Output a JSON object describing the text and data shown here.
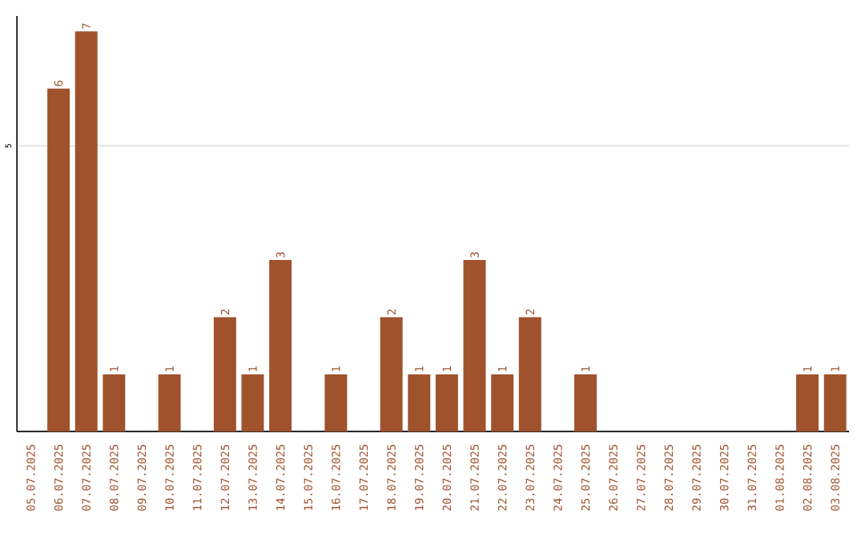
{
  "chart_data": {
    "type": "bar",
    "color": "#a0522d",
    "categories": [
      "05.07.2025",
      "06.07.2025",
      "07.07.2025",
      "08.07.2025",
      "09.07.2025",
      "10.07.2025",
      "11.07.2025",
      "12.07.2025",
      "13.07.2025",
      "14.07.2025",
      "15.07.2025",
      "16.07.2025",
      "17.07.2025",
      "18.07.2025",
      "19.07.2025",
      "20.07.2025",
      "21.07.2025",
      "22.07.2025",
      "23.07.2025",
      "24.07.2025",
      "25.07.2025",
      "26.07.2025",
      "27.07.2025",
      "28.07.2025",
      "29.07.2025",
      "30.07.2025",
      "31.07.2025",
      "01.08.2025",
      "02.08.2025",
      "03.08.2025"
    ],
    "values": [
      0,
      6,
      7,
      1,
      0,
      1,
      0,
      2,
      1,
      3,
      0,
      1,
      0,
      2,
      1,
      1,
      3,
      1,
      2,
      0,
      1,
      0,
      0,
      0,
      0,
      0,
      0,
      0,
      1,
      1
    ],
    "value_labels": [
      null,
      "6",
      "7",
      "1",
      null,
      "1",
      null,
      "2",
      "1",
      "3",
      null,
      "1",
      null,
      "2",
      "1",
      "1",
      "3",
      "1",
      "2",
      null,
      "1",
      null,
      null,
      null,
      null,
      null,
      null,
      null,
      "1",
      "1"
    ],
    "ylim": [
      0,
      7.27
    ],
    "yticks": [
      5
    ],
    "grid": "y"
  }
}
